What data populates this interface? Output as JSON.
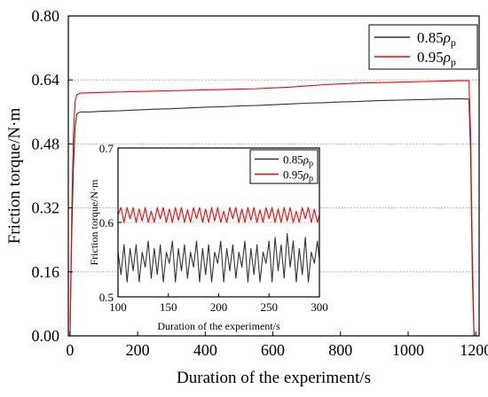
{
  "colors": {
    "series_085": "#333333",
    "series_095": "#ff0000",
    "grid": "#999999",
    "axis": "#000000"
  },
  "chart_data": [
    {
      "type": "line",
      "title": "",
      "xlabel": "Duration of the experiment/s",
      "ylabel": "Friction torque/N·m",
      "xlim": [
        -5,
        1210
      ],
      "ylim": [
        0,
        0.8
      ],
      "x_ticks": [
        0,
        200,
        400,
        600,
        800,
        1000,
        1200
      ],
      "y_ticks": [
        0,
        0.16,
        0.32,
        0.48,
        0.64,
        0.8
      ],
      "y_tick_labels": [
        "0.00",
        "0.16",
        "0.32",
        "0.48",
        "0.64",
        "0.80"
      ],
      "grid": "horizontal dotted",
      "legend": "top-right",
      "series": [
        {
          "name": "0.85ρp",
          "legend_base": "0.85",
          "legend_sym": "ρ",
          "legend_sub": "p",
          "color": "#333333",
          "x": [
            0,
            5,
            10,
            15,
            20,
            30,
            60,
            100,
            150,
            200,
            250,
            300,
            350,
            400,
            450,
            500,
            550,
            600,
            650,
            700,
            750,
            800,
            850,
            900,
            950,
            1000,
            1050,
            1100,
            1150,
            1180,
            1185,
            1190,
            1195
          ],
          "y": [
            0.0,
            0.25,
            0.42,
            0.52,
            0.555,
            0.56,
            0.56,
            0.562,
            0.563,
            0.565,
            0.567,
            0.568,
            0.57,
            0.572,
            0.573,
            0.575,
            0.576,
            0.578,
            0.58,
            0.582,
            0.583,
            0.585,
            0.586,
            0.588,
            0.589,
            0.59,
            0.591,
            0.592,
            0.593,
            0.592,
            0.45,
            0.15,
            0.0
          ]
        },
        {
          "name": "0.95ρp",
          "legend_base": "0.95",
          "legend_sym": "ρ",
          "legend_sub": "p",
          "color": "#ff0000",
          "x": [
            0,
            5,
            10,
            15,
            20,
            30,
            60,
            100,
            150,
            200,
            250,
            300,
            350,
            400,
            450,
            500,
            550,
            600,
            650,
            700,
            750,
            800,
            850,
            900,
            950,
            1000,
            1050,
            1100,
            1150,
            1180,
            1185,
            1190,
            1195
          ],
          "y": [
            0.0,
            0.3,
            0.5,
            0.585,
            0.603,
            0.607,
            0.608,
            0.609,
            0.61,
            0.611,
            0.612,
            0.613,
            0.614,
            0.615,
            0.616,
            0.617,
            0.618,
            0.62,
            0.622,
            0.625,
            0.628,
            0.63,
            0.632,
            0.633,
            0.634,
            0.635,
            0.636,
            0.637,
            0.638,
            0.638,
            0.5,
            0.2,
            0.0
          ]
        }
      ]
    },
    {
      "type": "line",
      "title": "",
      "xlabel": "Duration of the experiment/s",
      "ylabel": "Friction torque/N·m",
      "xlim": [
        100,
        300
      ],
      "ylim": [
        0.5,
        0.7
      ],
      "x_ticks": [
        100,
        150,
        200,
        250,
        300
      ],
      "y_ticks": [
        0.5,
        0.6,
        0.7
      ],
      "y_tick_labels": [
        "0.5",
        "0.6",
        "0.7"
      ],
      "grid": "horizontal dotted",
      "legend": "top-right",
      "series": [
        {
          "name": "0.85ρp",
          "legend_base": "0.85",
          "legend_sym": "ρ",
          "legend_sub": "p",
          "color": "#333333",
          "x": [
            100,
            103,
            106,
            109,
            112,
            115,
            118,
            121,
            124,
            127,
            130,
            133,
            136,
            139,
            142,
            145,
            148,
            151,
            154,
            157,
            160,
            163,
            166,
            169,
            172,
            175,
            178,
            181,
            184,
            187,
            190,
            193,
            196,
            199,
            202,
            205,
            208,
            211,
            214,
            217,
            220,
            223,
            226,
            229,
            232,
            235,
            238,
            241,
            244,
            247,
            250,
            253,
            256,
            259,
            262,
            265,
            268,
            271,
            274,
            277,
            280,
            283,
            286,
            289,
            292,
            295,
            298,
            300
          ],
          "y": [
            0.56,
            0.53,
            0.57,
            0.52,
            0.565,
            0.535,
            0.57,
            0.52,
            0.56,
            0.54,
            0.575,
            0.525,
            0.565,
            0.53,
            0.57,
            0.52,
            0.56,
            0.545,
            0.575,
            0.52,
            0.565,
            0.535,
            0.57,
            0.525,
            0.56,
            0.54,
            0.575,
            0.52,
            0.565,
            0.53,
            0.57,
            0.52,
            0.56,
            0.545,
            0.575,
            0.52,
            0.565,
            0.535,
            0.57,
            0.525,
            0.56,
            0.54,
            0.575,
            0.52,
            0.565,
            0.53,
            0.57,
            0.52,
            0.56,
            0.545,
            0.575,
            0.52,
            0.58,
            0.535,
            0.57,
            0.525,
            0.585,
            0.54,
            0.575,
            0.52,
            0.565,
            0.53,
            0.58,
            0.52,
            0.56,
            0.545,
            0.575,
            0.55
          ]
        },
        {
          "name": "0.95ρp",
          "legend_base": "0.95",
          "legend_sym": "ρ",
          "legend_sub": "p",
          "color": "#ff0000",
          "x": [
            100,
            103,
            106,
            109,
            112,
            115,
            118,
            121,
            124,
            127,
            130,
            133,
            136,
            139,
            142,
            145,
            148,
            151,
            154,
            157,
            160,
            163,
            166,
            169,
            172,
            175,
            178,
            181,
            184,
            187,
            190,
            193,
            196,
            199,
            202,
            205,
            208,
            211,
            214,
            217,
            220,
            223,
            226,
            229,
            232,
            235,
            238,
            241,
            244,
            247,
            250,
            253,
            256,
            259,
            262,
            265,
            268,
            271,
            274,
            277,
            280,
            283,
            286,
            289,
            292,
            295,
            298,
            300
          ],
          "y": [
            0.61,
            0.62,
            0.6,
            0.62,
            0.605,
            0.62,
            0.6,
            0.618,
            0.602,
            0.62,
            0.6,
            0.615,
            0.6,
            0.62,
            0.605,
            0.62,
            0.6,
            0.618,
            0.6,
            0.62,
            0.603,
            0.62,
            0.6,
            0.617,
            0.6,
            0.62,
            0.605,
            0.62,
            0.6,
            0.618,
            0.6,
            0.62,
            0.602,
            0.62,
            0.6,
            0.615,
            0.6,
            0.62,
            0.605,
            0.62,
            0.6,
            0.618,
            0.6,
            0.62,
            0.603,
            0.62,
            0.6,
            0.617,
            0.6,
            0.62,
            0.605,
            0.62,
            0.6,
            0.618,
            0.6,
            0.62,
            0.602,
            0.62,
            0.6,
            0.615,
            0.6,
            0.62,
            0.605,
            0.62,
            0.6,
            0.618,
            0.6,
            0.61
          ]
        }
      ]
    }
  ]
}
